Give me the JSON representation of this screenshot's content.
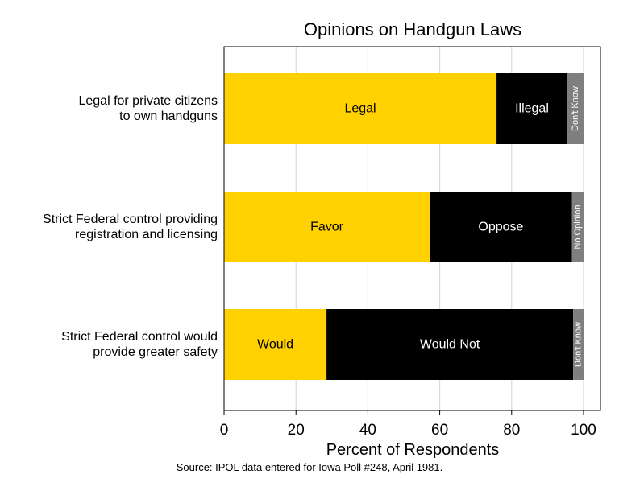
{
  "chart_data": {
    "type": "bar",
    "orientation": "horizontal",
    "stacked": true,
    "title": "Opinions on Handgun Laws",
    "xlabel": "Percent of Respondents",
    "ylabel": "",
    "xlim": [
      0,
      105
    ],
    "xticks": [
      0,
      20,
      40,
      60,
      80,
      100
    ],
    "grid": true,
    "source": "Source: IPOL data entered for Iowa Poll #248, April 1981.",
    "categories": [
      "Legal for private citizens\nto own handguns",
      "Strict Federal control providing\nregistration and licensing",
      "Strict Federal control would\nprovide greater safety"
    ],
    "bars": [
      {
        "segments": [
          {
            "label": "Legal",
            "value": 75.8,
            "color": "#FFD100",
            "text_color": "#000000",
            "rotated": false
          },
          {
            "label": "Illegal",
            "value": 19.7,
            "color": "#000000",
            "text_color": "#ffffff",
            "rotated": false
          },
          {
            "label": "Don't Know",
            "value": 4.5,
            "color": "#7f7f7f",
            "text_color": "#ffffff",
            "rotated": true
          }
        ]
      },
      {
        "segments": [
          {
            "label": "Favor",
            "value": 57.2,
            "color": "#FFD100",
            "text_color": "#000000",
            "rotated": false
          },
          {
            "label": "Oppose",
            "value": 39.6,
            "color": "#000000",
            "text_color": "#ffffff",
            "rotated": false
          },
          {
            "label": "No Opinion",
            "value": 3.2,
            "color": "#7f7f7f",
            "text_color": "#ffffff",
            "rotated": true
          }
        ]
      },
      {
        "segments": [
          {
            "label": "Would",
            "value": 28.5,
            "color": "#FFD100",
            "text_color": "#000000",
            "rotated": false
          },
          {
            "label": "Would Not",
            "value": 68.6,
            "color": "#000000",
            "text_color": "#ffffff",
            "rotated": false
          },
          {
            "label": "Don't Know",
            "value": 2.9,
            "color": "#7f7f7f",
            "text_color": "#ffffff",
            "rotated": true
          }
        ]
      }
    ]
  }
}
